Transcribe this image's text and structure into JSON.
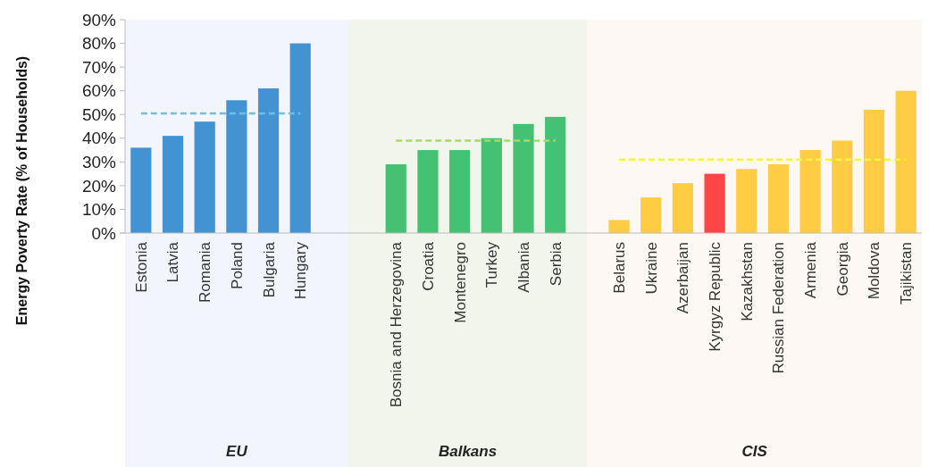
{
  "chart_data": {
    "type": "bar",
    "ylabel": "Energy Poverty Rate (% of Households)",
    "categories": [
      "Estonia",
      "Latvia",
      "Romania",
      "Poland",
      "Bulgaria",
      "Hungary",
      null,
      null,
      "Bosnia and Herzegovina",
      "Croatia",
      "Montenegro",
      "Turkey",
      "Albania",
      "Serbia",
      null,
      "Belarus",
      "Ukraine",
      "Azerbaijan",
      "Kyrgyz Republic",
      "Kazakhstan",
      "Russian Federation",
      "Armenia",
      "Georgia",
      "Moldova",
      "Tajikistan"
    ],
    "series": [
      {
        "values": [
          36,
          41,
          47,
          56,
          61,
          80,
          null,
          null,
          29,
          35,
          35,
          40,
          46,
          49,
          null,
          5.5,
          15,
          21,
          25,
          27,
          29,
          35,
          39,
          52,
          60
        ],
        "colors": [
          "#4393d3",
          "#4393d3",
          "#4393d3",
          "#4393d3",
          "#4393d3",
          "#4393d3",
          null,
          null,
          "#44c173",
          "#44c173",
          "#44c173",
          "#44c173",
          "#44c173",
          "#44c173",
          null,
          "#ffcc44",
          "#ffcc44",
          "#ffcc44",
          "#ff4545",
          "#ffcc44",
          "#ffcc44",
          "#ffcc44",
          "#ffcc44",
          "#ffcc44",
          "#ffcc44"
        ]
      },
      {
        "type": "line",
        "line_style": "dashed",
        "color": "#6ec1de",
        "values": [
          50.5,
          50.5,
          50.5,
          50.5,
          50.5,
          50.5,
          null,
          null,
          null,
          null,
          null,
          null,
          null,
          null,
          null,
          null,
          null,
          null,
          null,
          null,
          null,
          null,
          null,
          null,
          null
        ]
      },
      {
        "type": "line",
        "line_style": "dashed",
        "color": "#a6d96a",
        "values": [
          null,
          null,
          null,
          null,
          null,
          null,
          null,
          null,
          39,
          39,
          39,
          39,
          39,
          39,
          null,
          null,
          null,
          null,
          null,
          null,
          null,
          null,
          null,
          null,
          null
        ]
      },
      {
        "type": "line",
        "line_style": "dashed",
        "color": "#f5f53c",
        "values": [
          null,
          null,
          null,
          null,
          null,
          null,
          null,
          null,
          null,
          null,
          null,
          null,
          null,
          null,
          null,
          31,
          31,
          31,
          31,
          31,
          31,
          31,
          31,
          31,
          31
        ]
      }
    ],
    "ylim": [
      0,
      90
    ],
    "yticks": [
      {
        "value": 0,
        "label": "0%"
      },
      {
        "value": 10,
        "label": "10%"
      },
      {
        "value": 20,
        "label": "20%"
      },
      {
        "value": 30,
        "label": "30%"
      },
      {
        "value": 40,
        "label": "40%"
      },
      {
        "value": 50,
        "label": "50%"
      },
      {
        "value": 60,
        "label": "60%"
      },
      {
        "value": 70,
        "label": "70%"
      },
      {
        "value": 80,
        "label": "80%"
      },
      {
        "value": 90,
        "label": "90%"
      }
    ],
    "annotations": [
      "EU",
      "Balkans",
      "CIS"
    ]
  }
}
